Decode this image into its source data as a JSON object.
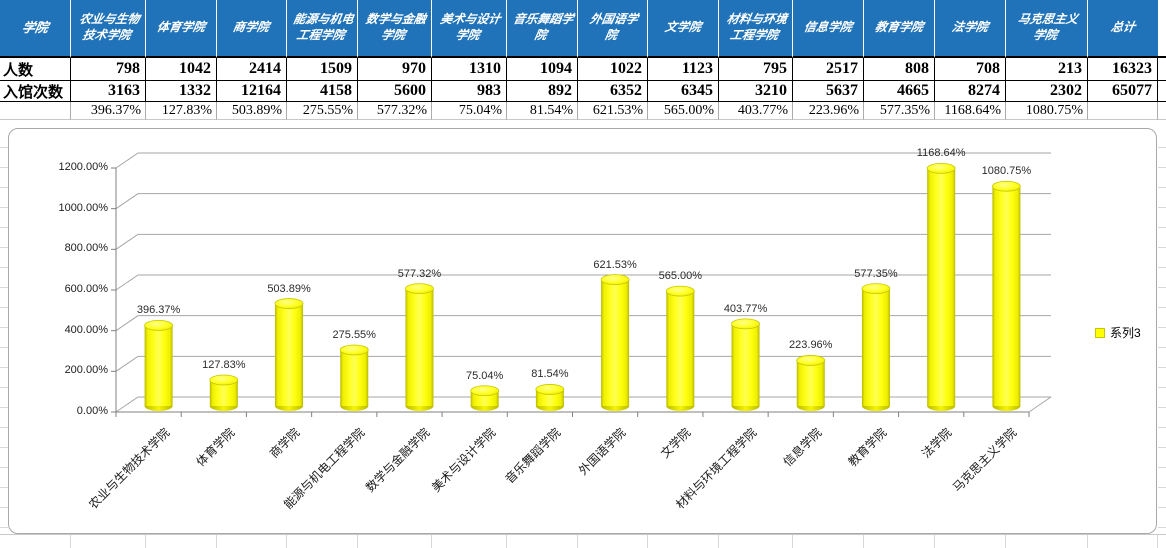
{
  "sheet": {
    "table": {
      "corner_label": "学院",
      "people_label": "人数",
      "visits_label": "入馆次数",
      "ratio_label": "",
      "columns": [
        {
          "name": "农业与生物技术学院",
          "people": "798",
          "visits": "3163",
          "ratio": "396.37%"
        },
        {
          "name": "体育学院",
          "people": "1042",
          "visits": "1332",
          "ratio": "127.83%"
        },
        {
          "name": "商学院",
          "people": "2414",
          "visits": "12164",
          "ratio": "503.89%"
        },
        {
          "name": "能源与机电工程学院",
          "people": "1509",
          "visits": "4158",
          "ratio": "275.55%"
        },
        {
          "name": "数学与金融学院",
          "people": "970",
          "visits": "5600",
          "ratio": "577.32%"
        },
        {
          "name": "美术与设计学院",
          "people": "1310",
          "visits": "983",
          "ratio": "75.04%"
        },
        {
          "name": "音乐舞蹈学院",
          "people": "1094",
          "visits": "892",
          "ratio": "81.54%"
        },
        {
          "name": "外国语学院",
          "people": "1022",
          "visits": "6352",
          "ratio": "621.53%"
        },
        {
          "name": "文学院",
          "people": "1123",
          "visits": "6345",
          "ratio": "565.00%"
        },
        {
          "name": "材料与环境工程学院",
          "people": "795",
          "visits": "3210",
          "ratio": "403.77%"
        },
        {
          "name": "信息学院",
          "people": "2517",
          "visits": "5637",
          "ratio": "223.96%"
        },
        {
          "name": "教育学院",
          "people": "808",
          "visits": "4665",
          "ratio": "577.35%"
        },
        {
          "name": "法学院",
          "people": "708",
          "visits": "8274",
          "ratio": "1168.64%"
        },
        {
          "name": "马克思主义学院",
          "people": "213",
          "visits": "2302",
          "ratio": "1080.75%"
        },
        {
          "name": "总计",
          "people": "16323",
          "visits": "65077",
          "ratio": ""
        }
      ]
    }
  },
  "chart_data": {
    "type": "bar",
    "subtype": "3d-cylinder",
    "title": "",
    "categories": [
      "农业与生物技术学院",
      "体育学院",
      "商学院",
      "能源与机电工程学院",
      "数学与金融学院",
      "美术与设计学院",
      "音乐舞蹈学院",
      "外国语学院",
      "文学院",
      "材料与环境工程学院",
      "信息学院",
      "教育学院",
      "法学院",
      "马克思主义学院"
    ],
    "series": [
      {
        "name": "系列3",
        "values": [
          396.37,
          127.83,
          503.89,
          275.55,
          577.32,
          75.04,
          81.54,
          621.53,
          565.0,
          403.77,
          223.96,
          577.35,
          1168.64,
          1080.75
        ]
      }
    ],
    "data_labels": [
      "396.37%",
      "127.83%",
      "503.89%",
      "275.55%",
      "577.32%",
      "75.04%",
      "81.54%",
      "621.53%",
      "565.00%",
      "403.77%",
      "223.96%",
      "577.35%",
      "1168.64%",
      "1080.75%"
    ],
    "y_ticks": [
      "0.00%",
      "200.00%",
      "400.00%",
      "600.00%",
      "800.00%",
      "1000.00%",
      "1200.00%"
    ],
    "ylim": [
      0,
      1200
    ],
    "grid": true,
    "legend_position": "right",
    "bar_color": "#FFFF00"
  },
  "colors": {
    "header_bg": "#2173B9",
    "header_text": "#FFFFFF",
    "bar_fill": "#FFFF00",
    "bar_edge": "#BDBD00",
    "chart_gridline": "#A6A6A6",
    "axis_line": "#808080",
    "sheet_gridline": "#D9D9D9"
  }
}
